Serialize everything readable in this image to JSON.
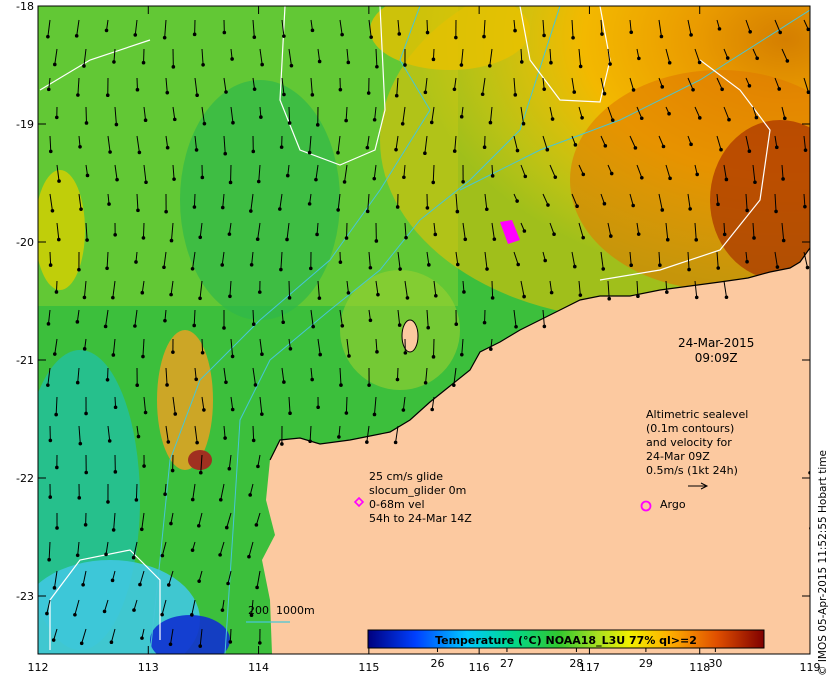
{
  "map": {
    "x_ticks": [
      "112",
      "113",
      "114",
      "115",
      "116",
      "117",
      "118",
      "119"
    ],
    "y_ticks": [
      "-18",
      "-19",
      "-20",
      "-21",
      "-22",
      "-23"
    ],
    "colors": {
      "land": "#fcc9a0",
      "contour": "#ffffff",
      "bathymetry": "#47c6d6",
      "arrow": "#000000",
      "glider": "#ff00ff",
      "argo": "#ff00ff"
    }
  },
  "annotations": {
    "datetime": "24-Mar-2015\n09:09Z",
    "altimetry": "Altimetric sealevel\n(0.1m contours)\nand velocity for\n24-Mar 09Z\n0.5m/s (1kt 24h)",
    "glider": "25 cm/s glide\nslocum_glider 0m\n0-68m vel\n54h to 24-Mar 14Z",
    "argo": "Argo",
    "isobath": "200  1000m"
  },
  "colorbar": {
    "title": "Temperature (°C) NOAA18_L3U 77% ql>=2",
    "ticks": [
      "26",
      "27",
      "28",
      "29",
      "30"
    ],
    "range": [
      25.0,
      30.7
    ]
  },
  "stamp": "© IMOS 05-Apr-2015 11:52:55 Hobart time"
}
